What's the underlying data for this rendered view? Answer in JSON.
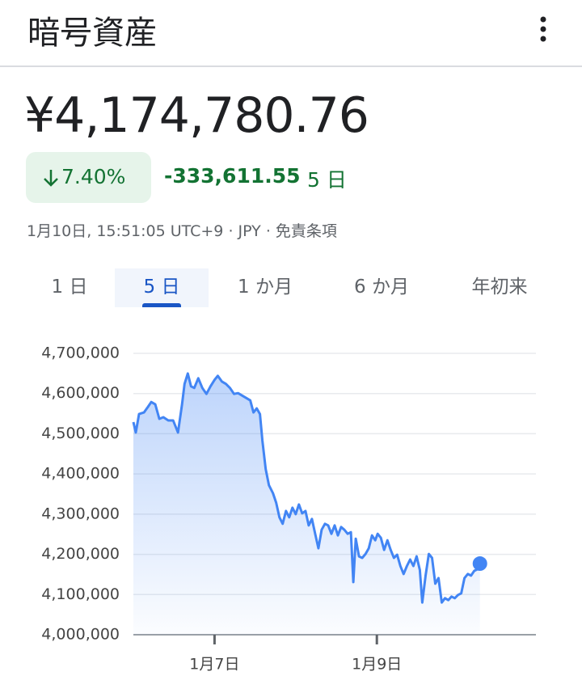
{
  "header": {
    "title": "暗号資産"
  },
  "quote": {
    "price": "¥4,174,780.76",
    "change_percent": "7.40%",
    "change": "-333,611.55",
    "period": "5 日",
    "timestamp": "1月10日, 15:51:05 UTC+9",
    "currency": "JPY",
    "disclaimer": "免責条項"
  },
  "tabs": {
    "labels": [
      "1 日",
      "5 日",
      "1 か月",
      "6 か月",
      "年初来"
    ],
    "selected": 1
  },
  "chart_data": {
    "type": "line",
    "color": "#4285f4",
    "grid": true,
    "xlim": [
      6,
      10.96
    ],
    "ylim": [
      4000000,
      4700000
    ],
    "xticks": [
      {
        "value": 7,
        "label": "1月7日"
      },
      {
        "value": 9,
        "label": "1月9日"
      }
    ],
    "yticks": [
      {
        "value": 4700000,
        "label": "4,700,000"
      },
      {
        "value": 4600000,
        "label": "4,600,000"
      },
      {
        "value": 4500000,
        "label": "4,500,000"
      },
      {
        "value": 4400000,
        "label": "4,400,000"
      },
      {
        "value": 4300000,
        "label": "4,300,000"
      },
      {
        "value": 4200000,
        "label": "4,200,000"
      },
      {
        "value": 4100000,
        "label": "4,100,000"
      },
      {
        "value": 4000000,
        "label": "4,000,000"
      }
    ],
    "x": [
      6.0,
      6.03,
      6.07,
      6.13,
      6.18,
      6.22,
      6.27,
      6.32,
      6.37,
      6.43,
      6.49,
      6.55,
      6.6,
      6.63,
      6.67,
      6.71,
      6.75,
      6.8,
      6.85,
      6.9,
      6.95,
      7.0,
      7.04,
      7.09,
      7.14,
      7.19,
      7.24,
      7.29,
      7.34,
      7.39,
      7.44,
      7.48,
      7.52,
      7.56,
      7.59,
      7.63,
      7.67,
      7.72,
      7.76,
      7.8,
      7.84,
      7.88,
      7.92,
      7.96,
      8.0,
      8.04,
      8.08,
      8.12,
      8.16,
      8.2,
      8.24,
      8.28,
      8.32,
      8.36,
      8.4,
      8.44,
      8.48,
      8.52,
      8.56,
      8.6,
      8.64,
      8.68,
      8.71,
      8.74,
      8.78,
      8.82,
      8.86,
      8.9,
      8.94,
      8.98,
      9.01,
      9.05,
      9.09,
      9.13,
      9.17,
      9.21,
      9.25,
      9.29,
      9.33,
      9.37,
      9.41,
      9.45,
      9.49,
      9.53,
      9.56,
      9.6,
      9.64,
      9.68,
      9.72,
      9.76,
      9.8,
      9.84,
      9.88,
      9.92,
      9.96,
      10.0,
      10.04,
      10.08,
      10.12,
      10.16,
      10.2,
      10.24,
      10.27
    ],
    "values": [
      4529000,
      4503000,
      4549000,
      4553000,
      4567000,
      4579000,
      4573000,
      4537000,
      4541000,
      4533000,
      4533000,
      4503000,
      4573000,
      4624000,
      4650000,
      4618000,
      4614000,
      4638000,
      4614000,
      4599000,
      4618000,
      4634000,
      4644000,
      4630000,
      4624000,
      4614000,
      4599000,
      4601000,
      4595000,
      4589000,
      4583000,
      4553000,
      4563000,
      4549000,
      4483000,
      4412000,
      4372000,
      4352000,
      4328000,
      4292000,
      4276000,
      4308000,
      4292000,
      4316000,
      4300000,
      4324000,
      4302000,
      4308000,
      4272000,
      4288000,
      4251000,
      4215000,
      4261000,
      4276000,
      4272000,
      4251000,
      4272000,
      4247000,
      4268000,
      4261000,
      4251000,
      4255000,
      4131000,
      4239000,
      4195000,
      4191000,
      4201000,
      4215000,
      4247000,
      4235000,
      4251000,
      4241000,
      4211000,
      4235000,
      4211000,
      4191000,
      4199000,
      4171000,
      4151000,
      4171000,
      4187000,
      4171000,
      4195000,
      4161000,
      4080000,
      4147000,
      4201000,
      4191000,
      4127000,
      4141000,
      4080000,
      4091000,
      4086000,
      4095000,
      4091000,
      4099000,
      4103000,
      4141000,
      4151000,
      4147000,
      4159000,
      4163000,
      4177000
    ]
  }
}
